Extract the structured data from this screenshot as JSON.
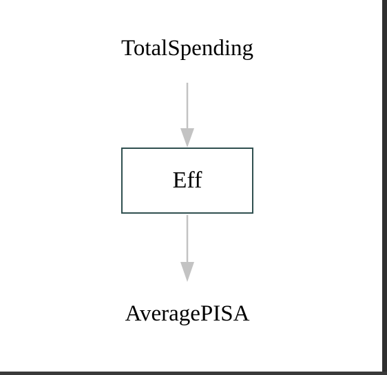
{
  "diagram": {
    "nodes": [
      {
        "id": "TotalSpending",
        "label": "TotalSpending",
        "shape": "plain"
      },
      {
        "id": "Eff",
        "label": "Eff",
        "shape": "box"
      },
      {
        "id": "AveragePISA",
        "label": "AveragePISA",
        "shape": "plain"
      }
    ],
    "edges": [
      {
        "from": "TotalSpending",
        "to": "Eff"
      },
      {
        "from": "Eff",
        "to": "AveragePISA"
      }
    ],
    "colors": {
      "edge": "#c3c3c3",
      "box_border": "#2f4f4f",
      "background": "#ffffff",
      "text": "#000000"
    }
  }
}
